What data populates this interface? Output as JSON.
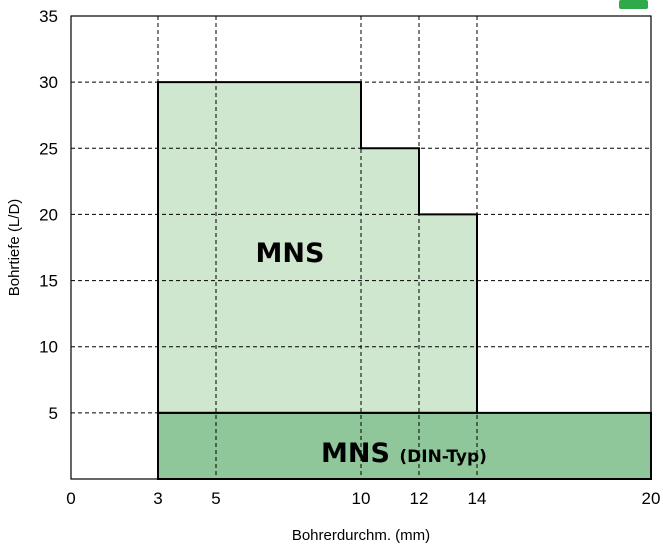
{
  "chart_data": {
    "type": "area",
    "xlabel": "Bohrerdurchm. (mm)",
    "ylabel": "Bohrtiefe (L/D)",
    "xlim": [
      0,
      20
    ],
    "ylim": [
      0,
      35
    ],
    "x_ticks": [
      0,
      3,
      5,
      10,
      12,
      14,
      20
    ],
    "y_ticks": [
      5,
      10,
      15,
      20,
      25,
      30,
      35
    ],
    "x_tick_labels": [
      "0",
      "3",
      "5",
      "10",
      "12",
      "14",
      "20"
    ],
    "y_tick_labels": [
      "5",
      "10",
      "15",
      "20",
      "25",
      "30",
      "35"
    ],
    "grid": true,
    "regions": [
      {
        "label": "MNS",
        "color": "#cfe6cf",
        "points": [
          [
            3,
            5
          ],
          [
            3,
            30
          ],
          [
            10,
            30
          ],
          [
            10,
            25
          ],
          [
            12,
            25
          ],
          [
            12,
            20
          ],
          [
            14,
            20
          ],
          [
            14,
            5
          ]
        ]
      },
      {
        "label": "MNS",
        "sublabel": "(DIN-Typ)",
        "color": "#8fc79a",
        "points": [
          [
            3,
            0
          ],
          [
            3,
            5
          ],
          [
            20,
            5
          ],
          [
            20,
            0
          ]
        ]
      }
    ],
    "colors": {
      "light": "#cfe6cf",
      "dark": "#8fc79a",
      "badge": "#2faa4a"
    }
  }
}
